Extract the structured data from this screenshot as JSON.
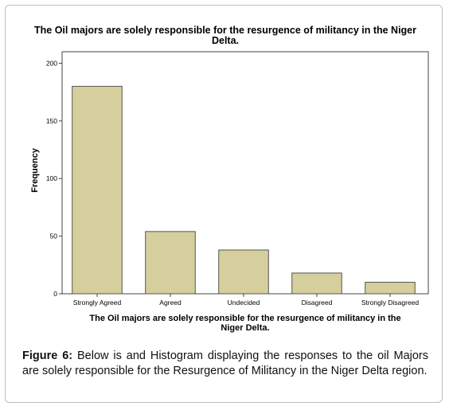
{
  "chart_data": {
    "type": "bar",
    "title_lines": [
      "The Oil majors are solely responsible for the resurgence of militancy in the Niger",
      "Delta."
    ],
    "xlabel_lines": [
      "The Oil majors are solely responsible for the resurgence of militancy in the",
      "Niger Delta."
    ],
    "ylabel": "Frequency",
    "categories": [
      "Strongly Agreed",
      "Agreed",
      "Undecided",
      "Disagreed",
      "Strongly Disagreed"
    ],
    "values": [
      180,
      54,
      38,
      18,
      10
    ],
    "ylim": [
      0,
      210
    ],
    "yticks": [
      0,
      50,
      100,
      150,
      200
    ],
    "ytick_labels": [
      "0",
      "50",
      "100",
      "150",
      "200"
    ],
    "bar_color": "#d4cf9c",
    "bar_stroke": "#555555",
    "grid": false
  },
  "caption": {
    "label": "Figure 6:",
    "text": " Below is and Histogram displaying the responses to the oil Majors are solely responsible for the Resurgence of Militancy in the Niger Delta region."
  }
}
